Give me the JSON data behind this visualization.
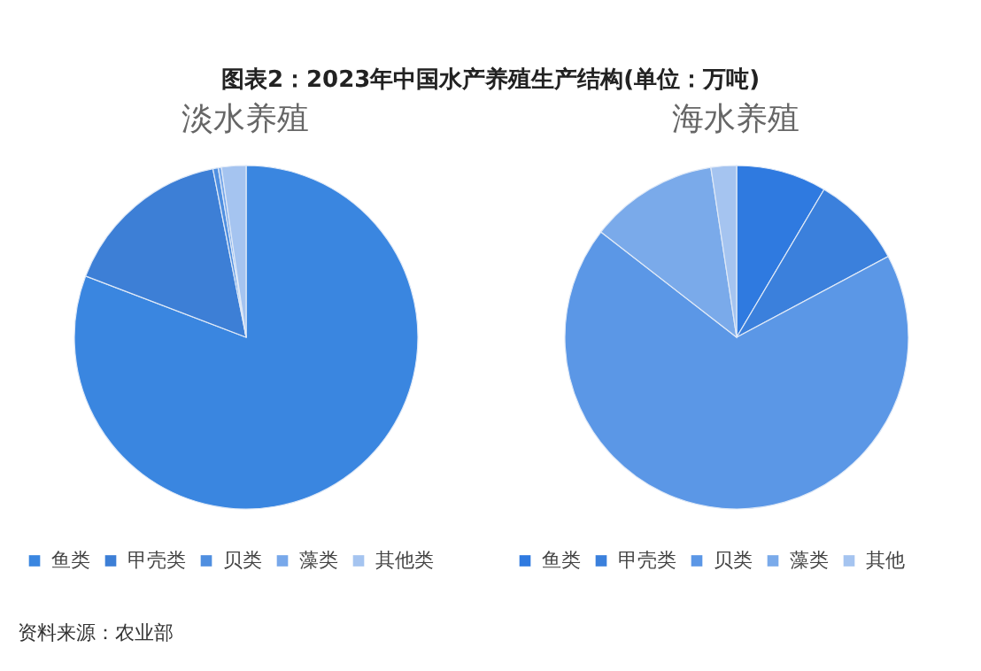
{
  "chart_data": [
    {
      "type": "pie",
      "title": "淡水养殖",
      "annotations": [
        "图表2：2023年中国水产养殖生产结构(单位：万吨)"
      ],
      "legend": "bottom",
      "categories": [
        "鱼类",
        "甲壳类",
        "贝类",
        "藻类",
        "其他类"
      ],
      "values": [
        80.8,
        16.1,
        0.5,
        0.3,
        2.3
      ],
      "colors": [
        "#3a86e0",
        "#3d7fd6",
        "#4f8fe0",
        "#78a8ea",
        "#a5c4f0"
      ]
    },
    {
      "type": "pie",
      "title": "海水养殖",
      "annotations": [
        "资料来源：农业部"
      ],
      "legend": "bottom",
      "categories": [
        "鱼类",
        "甲壳类",
        "贝类",
        "藻类",
        "其他"
      ],
      "values": [
        8.5,
        8.7,
        68.3,
        12.1,
        2.4
      ],
      "colors": [
        "#2f7ae0",
        "#3b80dc",
        "#5b97e6",
        "#7aaaea",
        "#a5c4f0"
      ]
    }
  ]
}
